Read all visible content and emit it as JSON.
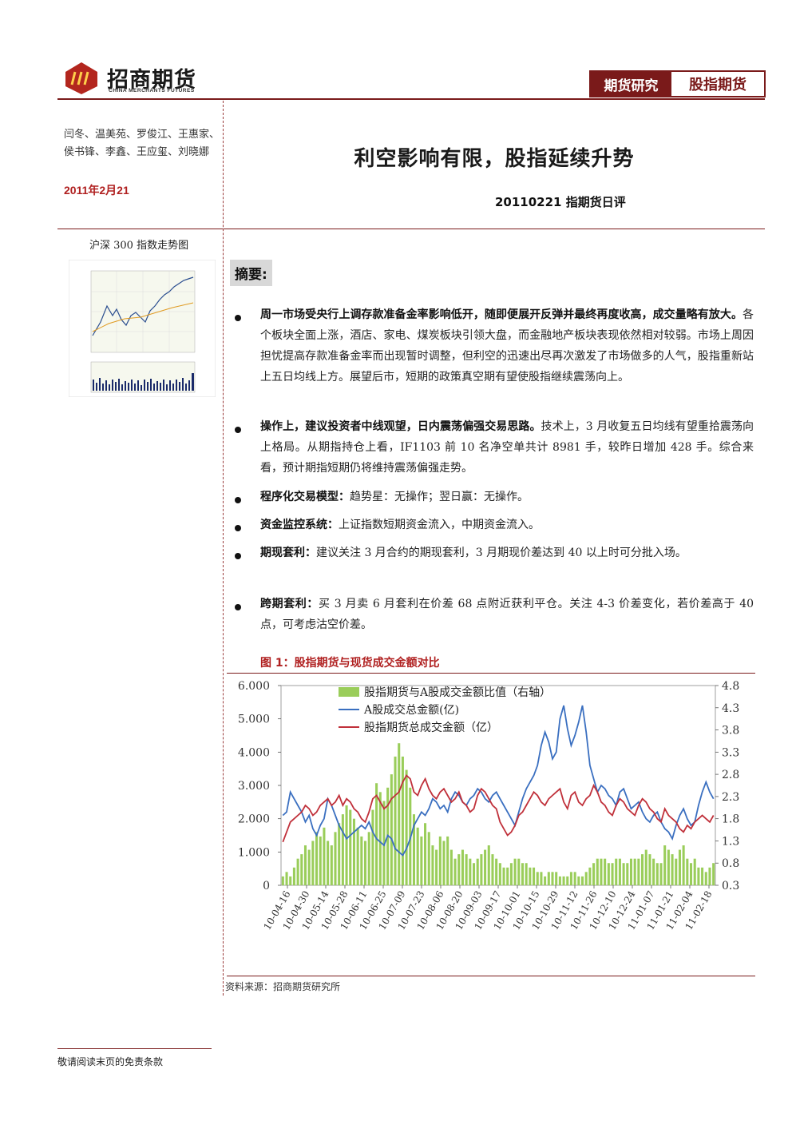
{
  "header": {
    "logo_cn": "招商期货",
    "logo_en": "CHINA MERCHANTS FUTURES",
    "tag_primary": "期货研究",
    "tag_secondary": "股指期货"
  },
  "left": {
    "authors": "闫冬、温美苑、罗俊江、王惠家、侯书锋、李鑫、王应玺、刘晓娜",
    "date": "2011年2月21",
    "mini_chart_title": "沪深 300 指数走势图"
  },
  "main": {
    "title": "利空影响有限，股指延续升势",
    "subtitle": "20110221 指期货日评",
    "summary_heading": "摘要:",
    "bullets": [
      {
        "bold": "周一市场受央行上调存款准备金率影响低开，随即便展开反弹并最终再度收高，成交量略有放大。",
        "text": "各个板块全面上涨，酒店、家电、煤炭板块引领大盘，而金融地产板块表现依然相对较弱。市场上周因担忧提高存款准备金率而出现暂时调整，但利空的迅速出尽再次激发了市场做多的人气，股指重新站上五日均线上方。展望后市，短期的政策真空期有望使股指继续震荡向上。"
      },
      {
        "bold": "操作上，建议投资者中线观望，日内震荡偏强交易思路。",
        "text": "技术上，3 月收复五日均线有望重拾震荡向上格局。从期指持仓上看，IF1103 前 10 名净空单共计 8981 手，较昨日增加 428 手。综合来看，预计期指短期仍将维持震荡偏强走势。"
      },
      {
        "bold": "程序化交易模型：",
        "text": "趋势星：无操作；翌日赢：无操作。"
      },
      {
        "bold": "资金监控系统：",
        "text": "上证指数短期资金流入，中期资金流入。"
      },
      {
        "bold": "期现套利：",
        "text": "建议关注 3 月合约的期现套利，3 月期现价差达到 40 以上时可分批入场。"
      },
      {
        "bold": "跨期套利：",
        "text": "买 3 月卖 6 月套利在价差 68 点附近获利平仓。关注 4-3 价差变化，若价差高于 40 点，可考虑沽空价差。"
      }
    ],
    "figure_title": "图 1：股指期货与现货成交金额对比",
    "source": "资料来源：招商期货研究所"
  },
  "footer": "敬请阅读末页的免责条款",
  "chart_data": {
    "type": "line",
    "title": "图 1：股指期货与现货成交金额对比",
    "x_tick_labels": [
      "10-04-16",
      "10-04-30",
      "10-05-14",
      "10-05-28",
      "10-06-11",
      "10-06-25",
      "10-07-09",
      "10-07-23",
      "10-08-06",
      "10-08-20",
      "10-09-03",
      "10-09-17",
      "10-10-01",
      "10-10-15",
      "10-10-29",
      "10-11-12",
      "10-11-26",
      "10-12-10",
      "10-12-24",
      "11-01-07",
      "11-01-21",
      "11-02-04",
      "11-02-18"
    ],
    "y_left_ticks": [
      "0",
      "1.000",
      "2.000",
      "3.000",
      "4.000",
      "5.000",
      "6.000"
    ],
    "y_right_ticks": [
      "0.3",
      "0.8",
      "1.3",
      "1.8",
      "2.3",
      "2.8",
      "3.3",
      "3.8",
      "4.3",
      "4.8"
    ],
    "ylim_left": [
      0,
      6000
    ],
    "ylim_right": [
      0.3,
      4.8
    ],
    "legend": [
      "股指期货与A股成交金额比值（右轴）",
      "A股成交总金额(亿)",
      "股指期货总成交金额（亿）"
    ],
    "colors": {
      "ratio": "#9acd5a",
      "a_share": "#3a6fc0",
      "futures": "#c0303a"
    },
    "series_spot": [
      2100,
      2200,
      2800,
      2600,
      2400,
      2200,
      1900,
      2100,
      1700,
      1500,
      1800,
      2000,
      2600,
      2400,
      2100,
      1800,
      1600,
      1400,
      1500,
      1600,
      1700,
      1800,
      1700,
      1900,
      1600,
      1400,
      1300,
      1200,
      1500,
      1400,
      1100,
      1000,
      900,
      1100,
      1400,
      1800,
      2000,
      2200,
      2100,
      2300,
      2600,
      2500,
      2300,
      2400,
      2200,
      2600,
      2800,
      2700,
      2500,
      2400,
      2600,
      2700,
      2900,
      2800,
      2600,
      2500,
      2700,
      2800,
      2600,
      2400,
      2200,
      2000,
      1800,
      2200,
      2600,
      2900,
      3100,
      3300,
      3600,
      4200,
      4600,
      4300,
      3800,
      4000,
      5000,
      5400,
      4700,
      4200,
      4500,
      4900,
      5400,
      4600,
      3600,
      3200,
      2800,
      3000,
      2900,
      2700,
      2600,
      2400,
      2800,
      2900,
      2600,
      2300,
      2400,
      2500,
      2200,
      2000,
      1900,
      2100,
      2200,
      1900,
      1700,
      1600,
      1400,
      1800,
      2100,
      2300,
      2000,
      1800,
      1900,
      2400,
      2800,
      3100,
      2800,
      2600
    ],
    "series_futures": [
      1300,
      1600,
      1900,
      2000,
      2100,
      2200,
      2400,
      2300,
      2100,
      2200,
      2400,
      2500,
      2600,
      2400,
      2500,
      2700,
      2400,
      2600,
      2500,
      2300,
      2200,
      2000,
      1900,
      2200,
      2600,
      2700,
      2500,
      2300,
      2400,
      2600,
      2700,
      2800,
      3100,
      3300,
      3200,
      2800,
      2700,
      3000,
      3200,
      2900,
      2700,
      2600,
      2800,
      2900,
      2700,
      2500,
      2600,
      2800,
      2500,
      2400,
      2200,
      2300,
      2700,
      2900,
      2800,
      2600,
      2400,
      2300,
      1900,
      1700,
      1500,
      1600,
      1800,
      2100,
      2200,
      2400,
      2600,
      2800,
      2700,
      2500,
      2400,
      2600,
      2700,
      2800,
      2900,
      2500,
      2300,
      2700,
      2800,
      2500,
      2400,
      2600,
      2700,
      3000,
      2800,
      2500,
      2400,
      2200,
      2100,
      2400,
      2600,
      2500,
      2300,
      2200,
      2100,
      2400,
      2600,
      2500,
      2300,
      2200,
      2000,
      1900,
      2300,
      2100,
      2000,
      1900,
      1700,
      1600,
      1800,
      1700,
      1900,
      2000,
      2100,
      2000,
      1900,
      2100
    ],
    "series_ratio": [
      0.5,
      0.6,
      0.5,
      0.7,
      0.9,
      1.0,
      1.2,
      1.1,
      1.3,
      1.5,
      1.4,
      1.6,
      1.3,
      1.2,
      1.5,
      1.7,
      1.9,
      2.1,
      2.0,
      1.8,
      1.6,
      1.4,
      1.3,
      1.5,
      2.0,
      2.6,
      2.4,
      2.2,
      2.5,
      2.8,
      3.2,
      3.5,
      3.2,
      2.9,
      2.5,
      1.9,
      1.6,
      1.4,
      1.7,
      1.5,
      1.2,
      1.1,
      1.4,
      1.3,
      1.4,
      1.1,
      0.9,
      1.0,
      1.1,
      1.0,
      0.9,
      0.8,
      0.9,
      1.0,
      1.1,
      1.2,
      1.0,
      0.9,
      0.8,
      0.7,
      0.7,
      0.8,
      0.9,
      0.9,
      0.8,
      0.8,
      0.7,
      0.7,
      0.6,
      0.6,
      0.5,
      0.6,
      0.6,
      0.6,
      0.5,
      0.5,
      0.5,
      0.6,
      0.6,
      0.5,
      0.5,
      0.6,
      0.7,
      0.8,
      0.9,
      0.9,
      0.9,
      0.8,
      0.8,
      0.9,
      0.9,
      0.8,
      0.8,
      0.9,
      0.9,
      0.9,
      1.0,
      1.1,
      1.0,
      0.9,
      0.8,
      0.8,
      1.2,
      1.1,
      1.0,
      0.9,
      1.1,
      1.2,
      0.9,
      0.8,
      0.9,
      0.7,
      0.7,
      0.6,
      0.7,
      0.8
    ]
  }
}
